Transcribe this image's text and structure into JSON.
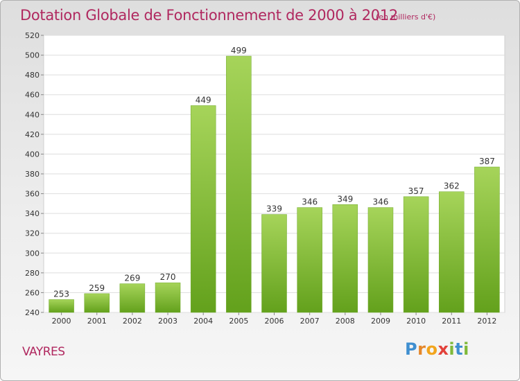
{
  "chart_data": {
    "type": "bar",
    "title": "Dotation Globale de Fonctionnement de 2000 à 2012",
    "subtitle": "(en milliers d'€)",
    "categories": [
      "2000",
      "2001",
      "2002",
      "2003",
      "2004",
      "2005",
      "2006",
      "2007",
      "2008",
      "2009",
      "2010",
      "2011",
      "2012"
    ],
    "values": [
      253,
      259,
      269,
      270,
      449,
      499,
      339,
      346,
      349,
      346,
      357,
      362,
      387
    ],
    "ylim": [
      240,
      520
    ],
    "yticks": [
      240,
      260,
      280,
      300,
      320,
      340,
      360,
      380,
      400,
      420,
      440,
      460,
      480,
      500,
      520
    ],
    "grid": true,
    "colors": {
      "bar_light": "#a6d45a",
      "bar_dark": "#63a11c",
      "title": "#b0285f"
    }
  },
  "footer": {
    "town": "VAYRES",
    "logo_letters": [
      {
        "ch": "P",
        "color": "#3f8fd0"
      },
      {
        "ch": "r",
        "color": "#e5872a"
      },
      {
        "ch": "o",
        "color": "#f2a51d"
      },
      {
        "ch": "x",
        "color": "#e2413a"
      },
      {
        "ch": "i",
        "color": "#7fb93a"
      },
      {
        "ch": "t",
        "color": "#3f8fd0"
      },
      {
        "ch": "i",
        "color": "#7fb93a"
      }
    ]
  }
}
